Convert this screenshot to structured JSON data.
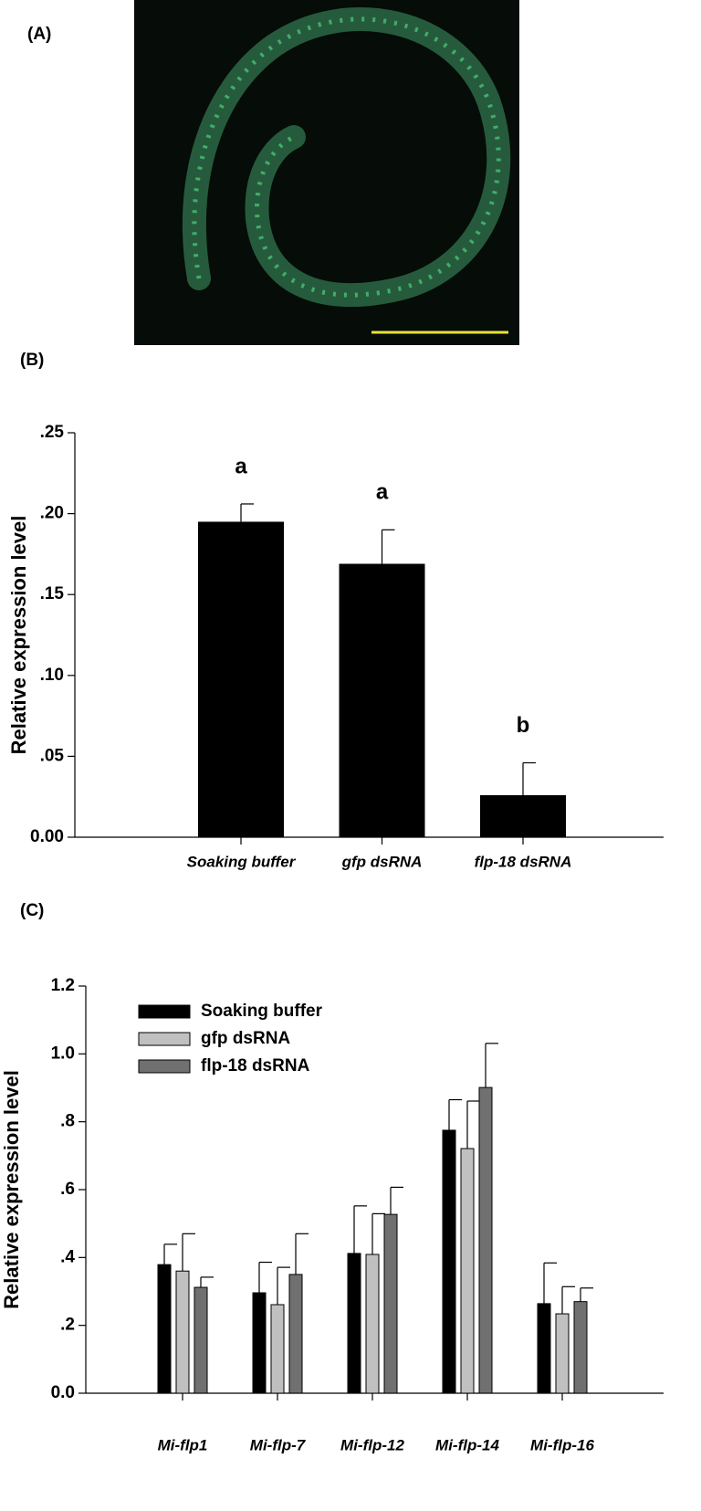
{
  "panel_labels": [
    "(A)",
    "(B)",
    "(C)"
  ],
  "chart_data": [
    {
      "type": "bar",
      "ylabel": "Relative expression level",
      "categories": [
        "Soaking buffer",
        "gfp dsRNA",
        "flp-18 dsRNA"
      ],
      "values": [
        0.195,
        0.169,
        0.026
      ],
      "errors": [
        0.011,
        0.021,
        0.02
      ],
      "annotations": [
        "a",
        "a",
        "b"
      ],
      "color": "#000000",
      "ylim": [
        0,
        0.25
      ],
      "yticks": [
        {
          "value": 0,
          "label": "0.00"
        },
        {
          "value": 0.05,
          "label": ".05"
        },
        {
          "value": 0.1,
          "label": ".10"
        },
        {
          "value": 0.15,
          "label": ".15"
        },
        {
          "value": 0.2,
          "label": ".20"
        },
        {
          "value": 0.25,
          "label": ".25"
        }
      ]
    },
    {
      "type": "grouped-bar",
      "ylabel": "Relative expression level",
      "categories": [
        "Mi-flp1",
        "Mi-flp-7",
        "Mi-flp-12",
        "Mi-flp-14",
        "Mi-flp-16"
      ],
      "series": [
        {
          "name": "Soaking buffer",
          "color": "#000000",
          "values": [
            0.379,
            0.296,
            0.412,
            0.775,
            0.264
          ],
          "errors": [
            0.06,
            0.09,
            0.14,
            0.09,
            0.12
          ]
        },
        {
          "name": "gfp dsRNA",
          "color": "#c0c0c0",
          "values": [
            0.36,
            0.261,
            0.409,
            0.721,
            0.234
          ],
          "errors": [
            0.11,
            0.11,
            0.12,
            0.14,
            0.08
          ]
        },
        {
          "name": "flp-18 dsRNA",
          "color": "#707070",
          "values": [
            0.312,
            0.35,
            0.527,
            0.901,
            0.27
          ],
          "errors": [
            0.03,
            0.12,
            0.08,
            0.13,
            0.04
          ]
        }
      ],
      "ylim": [
        0,
        1.2
      ],
      "yticks": [
        {
          "value": 0,
          "label": "0.0"
        },
        {
          "value": 0.2,
          "label": ".2"
        },
        {
          "value": 0.4,
          "label": ".4"
        },
        {
          "value": 0.6,
          "label": ".6"
        },
        {
          "value": 0.8,
          "label": ".8"
        },
        {
          "value": 1,
          "label": "1.0"
        },
        {
          "value": 1.2,
          "label": "1.2"
        }
      ]
    }
  ]
}
